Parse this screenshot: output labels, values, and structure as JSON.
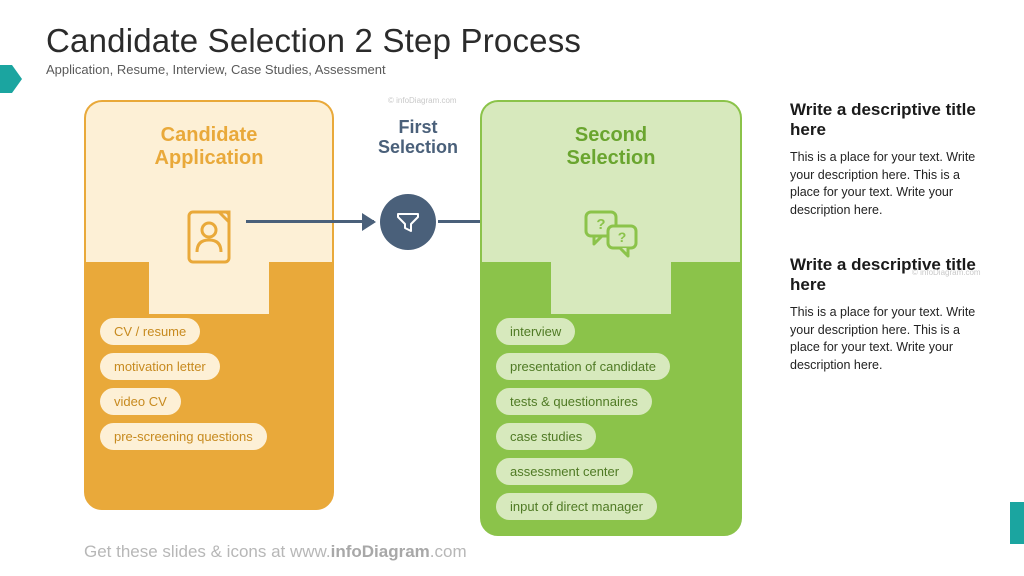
{
  "header": {
    "title": "Candidate Selection 2 Step Process",
    "subtitle": "Application, Resume, Interview, Case Studies, Assessment"
  },
  "accent_color": "#1ba5a0",
  "arrow_color": "#4a607a",
  "card_a": {
    "title_line1": "Candidate",
    "title_line2": "Application",
    "border_color": "#e9a93a",
    "fill_color": "#e9a93a",
    "light_color": "#fdf0d6",
    "text_color": "#c78a1f",
    "items": [
      "CV / resume",
      "motivation letter",
      "video CV",
      "pre-screening questions"
    ]
  },
  "mid": {
    "label_line1": "First",
    "label_line2": "Selection",
    "circle_color": "#4a607a"
  },
  "card_b": {
    "title_line1": "Second",
    "title_line2": "Selection",
    "border_color": "#8bc34a",
    "fill_color": "#8bc34a",
    "light_color": "#d7e9bd",
    "text_color": "#4f7a24",
    "items": [
      "interview",
      "presentation of candidate",
      "tests & questionnaires",
      "case studies",
      "assessment center",
      "input of direct manager"
    ]
  },
  "side": [
    {
      "title": "Write a descriptive title here",
      "body": "This is a place for your text. Write your description here. This is a place for your text. Write your description here."
    },
    {
      "title": "Write a descriptive title here",
      "body": "This is a place for your text. Write your description here. This is a place for your text. Write your description here."
    }
  ],
  "footer": {
    "prefix": "Get these slides & icons at www.",
    "bold": "infoDiagram",
    "suffix": ".com"
  },
  "watermark": "© infoDiagram.com"
}
